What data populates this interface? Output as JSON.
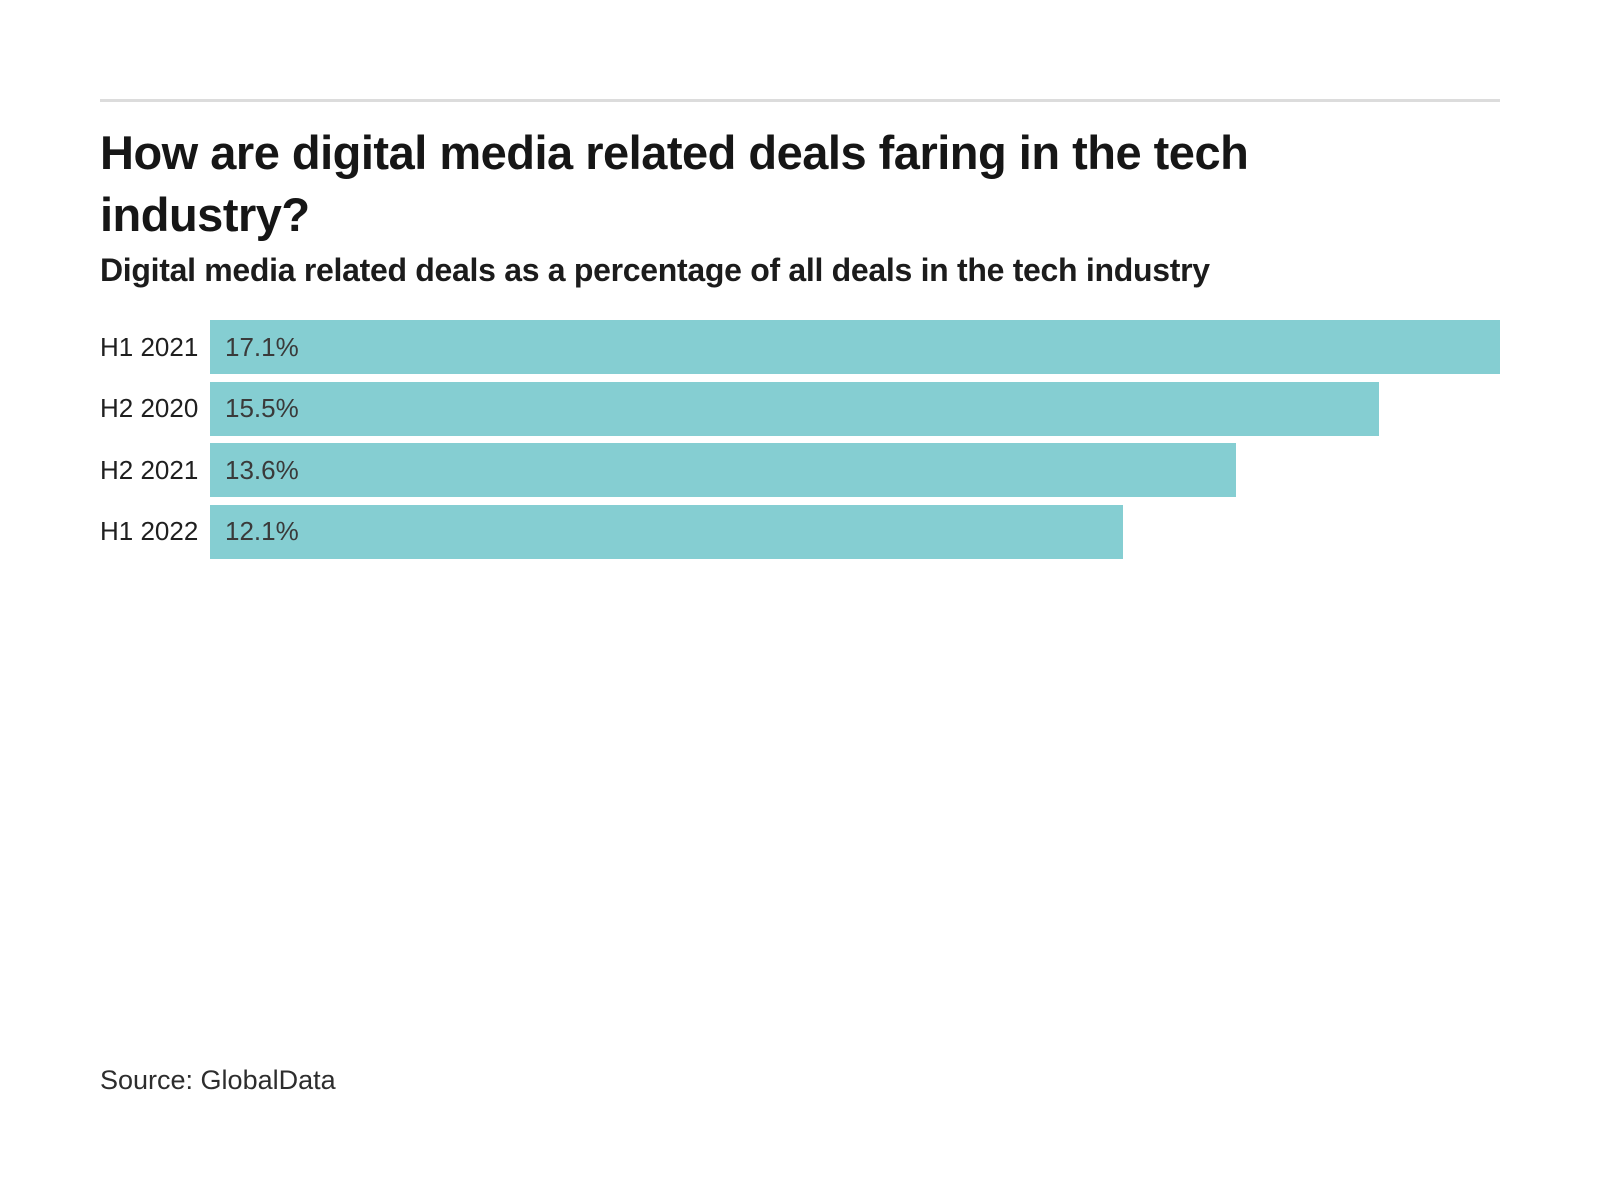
{
  "page": {
    "source": "Source: GlobalData"
  },
  "chart_data": {
    "type": "bar",
    "orientation": "horizontal",
    "title": "How are digital media related deals faring in the tech industry?",
    "subtitle": "Digital media related deals as a percentage of all deals in the tech industry",
    "categories": [
      "H1 2021",
      "H2 2020",
      "H2 2021",
      "H1 2022"
    ],
    "values": [
      17.1,
      15.5,
      13.6,
      12.1
    ],
    "value_labels": [
      "17.1%",
      "15.5%",
      "13.6%",
      "12.1%"
    ],
    "xlim": [
      0,
      17.1
    ],
    "bar_color": "#85ced2",
    "grid": false,
    "legend": false,
    "source": "Source: GlobalData"
  },
  "colors": {
    "bar": "#85ced2",
    "title_text": "#161616",
    "category_label": "#1f1f1f",
    "value_label": "#3a3a3a",
    "divider": "#dcdcdc",
    "background": "#ffffff"
  }
}
